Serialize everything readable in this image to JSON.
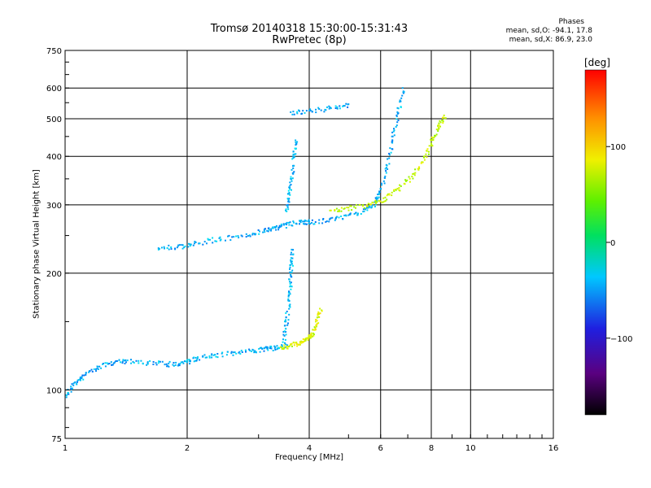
{
  "chart_data": {
    "type": "scatter",
    "title": "Tromsø 20140318 15:30:00-15:31:43",
    "subtitle": "RwPretec (8p)",
    "xlabel": "Frequency [MHz]",
    "ylabel": "Stationary phase Virtual Height [km]",
    "x_scale": "log",
    "y_scale": "log",
    "xlim": [
      1,
      16
    ],
    "ylim": [
      75,
      750
    ],
    "xticks": [
      1,
      2,
      4,
      6,
      8,
      10,
      16
    ],
    "yticks": [
      75,
      100,
      200,
      300,
      400,
      500,
      600,
      750
    ],
    "grid": true,
    "phases_box": {
      "title": "Phases",
      "o_line": "mean, sd,O: -94.1, 17.8",
      "x_line": "mean, sd,X: 86.9, 23.0"
    },
    "colorbar": {
      "unit": "[deg]",
      "range": [
        -180,
        180
      ],
      "ticks": [
        100,
        0,
        -100
      ],
      "tick_labels": [
        "100",
        "0",
        "−100"
      ],
      "colormap": "rainbow"
    },
    "traces": [
      {
        "mode": "O",
        "layer": "E",
        "phase": -94,
        "points": [
          [
            1.0,
            97
          ],
          [
            1.05,
            104
          ],
          [
            1.1,
            108
          ],
          [
            1.2,
            115
          ],
          [
            1.3,
            118
          ],
          [
            1.4,
            119
          ],
          [
            1.6,
            118
          ],
          [
            1.8,
            117
          ],
          [
            1.95,
            118
          ],
          [
            2.1,
            121
          ],
          [
            2.3,
            123
          ],
          [
            2.6,
            125
          ],
          [
            2.9,
            127
          ],
          [
            3.1,
            128
          ],
          [
            3.3,
            129
          ],
          [
            3.5,
            131
          ]
        ]
      },
      {
        "mode": "X",
        "layer": "E",
        "phase": 87,
        "points": [
          [
            3.4,
            129
          ],
          [
            3.6,
            131
          ],
          [
            3.8,
            133
          ],
          [
            3.95,
            136
          ],
          [
            4.05,
            140
          ],
          [
            4.15,
            150
          ],
          [
            4.25,
            162
          ]
        ]
      },
      {
        "mode": "O",
        "layer": "Es-spread",
        "phase": -92,
        "points": [
          [
            3.45,
            135
          ],
          [
            3.5,
            150
          ],
          [
            3.55,
            170
          ],
          [
            3.58,
            190
          ],
          [
            3.6,
            210
          ],
          [
            3.62,
            230
          ]
        ]
      },
      {
        "mode": "O",
        "layer": "F",
        "phase": -95,
        "points": [
          [
            1.7,
            232
          ],
          [
            1.9,
            235
          ],
          [
            2.1,
            240
          ],
          [
            2.4,
            246
          ],
          [
            2.8,
            252
          ],
          [
            3.1,
            258
          ],
          [
            3.3,
            262
          ],
          [
            3.5,
            268
          ],
          [
            3.8,
            272
          ],
          [
            4.0,
            272
          ],
          [
            4.5,
            276
          ],
          [
            5.0,
            282
          ],
          [
            5.5,
            292
          ],
          [
            5.8,
            305
          ],
          [
            6.0,
            330
          ],
          [
            6.2,
            380
          ],
          [
            6.4,
            450
          ],
          [
            6.6,
            520
          ],
          [
            6.8,
            600
          ]
        ]
      },
      {
        "mode": "X",
        "layer": "F",
        "phase": 80,
        "points": [
          [
            4.5,
            290
          ],
          [
            5.0,
            295
          ],
          [
            5.6,
            302
          ],
          [
            6.1,
            312
          ],
          [
            6.6,
            330
          ],
          [
            7.2,
            360
          ],
          [
            7.7,
            400
          ],
          [
            8.0,
            440
          ],
          [
            8.3,
            480
          ],
          [
            8.6,
            510
          ]
        ]
      },
      {
        "mode": "O",
        "layer": "F-spread",
        "phase": -90,
        "points": [
          [
            3.5,
            290
          ],
          [
            3.55,
            320
          ],
          [
            3.6,
            350
          ],
          [
            3.65,
            400
          ],
          [
            3.7,
            440
          ]
        ]
      },
      {
        "mode": "O",
        "layer": "F2",
        "phase": -96,
        "points": [
          [
            3.6,
            520
          ],
          [
            4.0,
            525
          ],
          [
            4.5,
            535
          ],
          [
            5.0,
            545
          ]
        ]
      }
    ]
  }
}
